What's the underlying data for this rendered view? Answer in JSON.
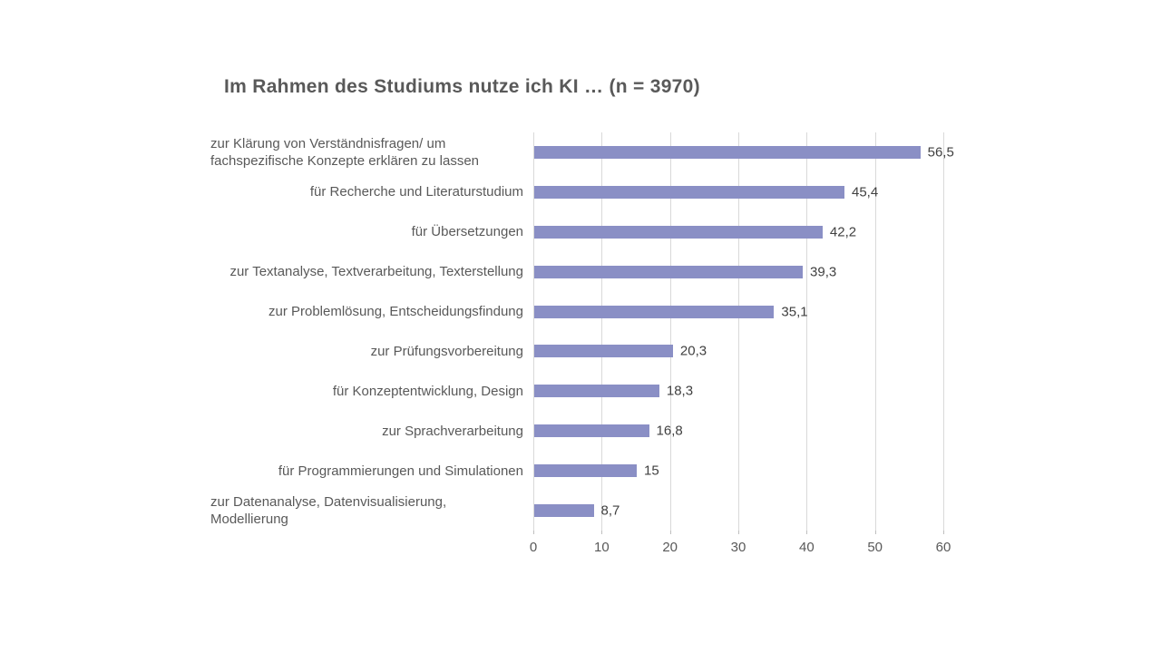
{
  "title": "Im Rahmen des Studiums nutze ich KI … (n = 3970)",
  "chart_data": {
    "type": "bar",
    "orientation": "horizontal",
    "title": "Im Rahmen des Studiums nutze ich KI … (n = 3970)",
    "categories": [
      "zur Klärung von Verständnisfragen/ um fachspezifische Konzepte erklären zu lassen",
      "für Recherche und Literaturstudium",
      "für Übersetzungen",
      "zur Textanalyse, Textverarbeitung, Texterstellung",
      "zur Problemlösung, Entscheidungsfindung",
      "zur Prüfungsvorbereitung",
      "für Konzeptentwicklung, Design",
      "zur Sprachverarbeitung",
      "für Programmierungen und Simulationen",
      "zur Datenanalyse, Datenvisualisierung, Modellierung"
    ],
    "values": [
      56.5,
      45.4,
      42.2,
      39.3,
      35.1,
      20.3,
      18.3,
      16.8,
      15,
      8.7
    ],
    "value_labels": [
      "56,5",
      "45,4",
      "42,2",
      "39,3",
      "35,1",
      "20,3",
      "18,3",
      "16,8",
      "15",
      "8,7"
    ],
    "xlabel": "",
    "ylabel": "",
    "xlim": [
      0,
      60
    ],
    "x_ticks": [
      0,
      10,
      20,
      30,
      40,
      50,
      60
    ],
    "x_tick_labels": [
      "0",
      "10",
      "20",
      "30",
      "40",
      "50",
      "60"
    ],
    "grid": "vertical",
    "legend": "none",
    "colors": {
      "bar": "#8A8FC5",
      "title": "#595959",
      "category_label": "#595959",
      "value_label": "#404040",
      "tick_label": "#595959",
      "gridline": "#D9D9D9",
      "background": "#FFFFFF"
    }
  }
}
